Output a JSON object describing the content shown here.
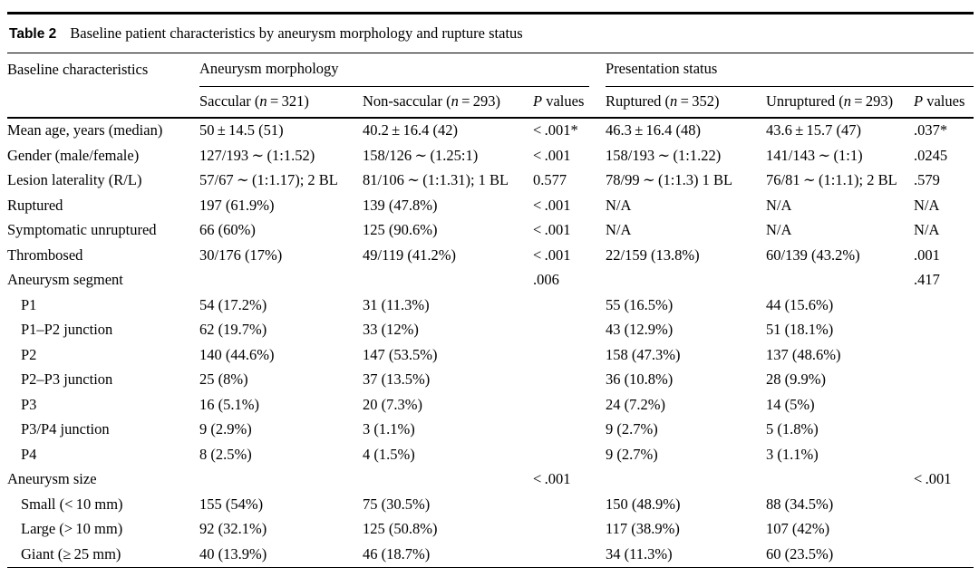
{
  "caption": {
    "label": "Table 2",
    "text": "Baseline patient characteristics by aneurysm morphology and rupture status"
  },
  "header": {
    "col1": "Baseline characteristics",
    "groups": [
      {
        "label": "Aneurysm morphology"
      },
      {
        "label": "Presentation status"
      }
    ],
    "subcolumns": [
      {
        "key": "saccular",
        "pre": "Saccular (",
        "it": "n",
        "post": " = 321)"
      },
      {
        "key": "non-saccular",
        "pre": "Non-saccular (",
        "it": "n",
        "post": " = 293)"
      },
      {
        "key": "p-values-morphology",
        "pre": "",
        "it": "P",
        "post": " values"
      },
      {
        "key": "ruptured",
        "pre": "Ruptured (",
        "it": "n",
        "post": " = 352)"
      },
      {
        "key": "unruptured",
        "pre": "Unruptured (",
        "it": "n",
        "post": " = 293)"
      },
      {
        "key": "p-values-presentation",
        "pre": "",
        "it": "P",
        "post": " values"
      }
    ]
  },
  "rows": [
    {
      "label": "Mean age, years (median)",
      "indent": false,
      "cells": [
        "50 ± 14.5 (51)",
        "40.2 ± 16.4 (42)",
        "< .001*",
        "46.3 ± 16.4 (48)",
        "43.6 ± 15.7 (47)",
        ".037*"
      ]
    },
    {
      "label": "Gender (male/female)",
      "indent": false,
      "cells": [
        "127/193 ∼ (1:1.52)",
        "158/126 ∼ (1.25:1)",
        "< .001",
        "158/193 ∼ (1:1.22)",
        "141/143 ∼ (1:1)",
        ".0245"
      ]
    },
    {
      "label": "Lesion laterality (R/L)",
      "indent": false,
      "cells": [
        "57/67 ∼ (1:1.17); 2 BL",
        "81/106 ∼ (1:1.31); 1 BL",
        "0.577",
        "78/99 ∼ (1:1.3) 1 BL",
        "76/81 ∼ (1:1.1); 2 BL",
        ".579"
      ]
    },
    {
      "label": "Ruptured",
      "indent": false,
      "cells": [
        "197 (61.9%)",
        "139 (47.8%)",
        "< .001",
        "N/A",
        "N/A",
        "N/A"
      ]
    },
    {
      "label": "Symptomatic unruptured",
      "indent": false,
      "cells": [
        "66 (60%)",
        "125 (90.6%)",
        "< .001",
        "N/A",
        "N/A",
        "N/A"
      ]
    },
    {
      "label": "Thrombosed",
      "indent": false,
      "cells": [
        "30/176 (17%)",
        "49/119 (41.2%)",
        "< .001",
        "22/159 (13.8%)",
        "60/139 (43.2%)",
        ".001"
      ]
    },
    {
      "label": "Aneurysm segment",
      "indent": false,
      "cells": [
        "",
        "",
        ".006",
        "",
        "",
        ".417"
      ]
    },
    {
      "label": "P1",
      "indent": true,
      "cells": [
        "54 (17.2%)",
        "31 (11.3%)",
        "",
        "55 (16.5%)",
        "44 (15.6%)",
        ""
      ]
    },
    {
      "label": "P1–P2 junction",
      "indent": true,
      "cells": [
        "62 (19.7%)",
        "33 (12%)",
        "",
        "43 (12.9%)",
        "51 (18.1%)",
        ""
      ]
    },
    {
      "label": "P2",
      "indent": true,
      "cells": [
        "140 (44.6%)",
        "147 (53.5%)",
        "",
        "158 (47.3%)",
        "137 (48.6%)",
        ""
      ]
    },
    {
      "label": "P2–P3 junction",
      "indent": true,
      "cells": [
        "25 (8%)",
        "37 (13.5%)",
        "",
        "36 (10.8%)",
        "28 (9.9%)",
        ""
      ]
    },
    {
      "label": "P3",
      "indent": true,
      "cells": [
        "16 (5.1%)",
        "20 (7.3%)",
        "",
        "24 (7.2%)",
        "14 (5%)",
        ""
      ]
    },
    {
      "label": "P3/P4 junction",
      "indent": true,
      "cells": [
        "9 (2.9%)",
        "3 (1.1%)",
        "",
        "9 (2.7%)",
        "5 (1.8%)",
        ""
      ]
    },
    {
      "label": "P4",
      "indent": true,
      "cells": [
        "8 (2.5%)",
        "4 (1.5%)",
        "",
        "9 (2.7%)",
        "3 (1.1%)",
        ""
      ]
    },
    {
      "label": "Aneurysm size",
      "indent": false,
      "cells": [
        "",
        "",
        "< .001",
        "",
        "",
        "< .001"
      ]
    },
    {
      "label": "Small (< 10 mm)",
      "indent": true,
      "cells": [
        "155 (54%)",
        "75 (30.5%)",
        "",
        "150 (48.9%)",
        "88 (34.5%)",
        ""
      ]
    },
    {
      "label": "Large (> 10 mm)",
      "indent": true,
      "cells": [
        "92 (32.1%)",
        "125 (50.8%)",
        "",
        "117 (38.9%)",
        "107 (42%)",
        ""
      ]
    },
    {
      "label": "Giant (≥ 25 mm)",
      "indent": true,
      "cells": [
        "40 (13.9%)",
        "46 (18.7%)",
        "",
        "34 (11.3%)",
        "60 (23.5%)",
        ""
      ]
    }
  ]
}
